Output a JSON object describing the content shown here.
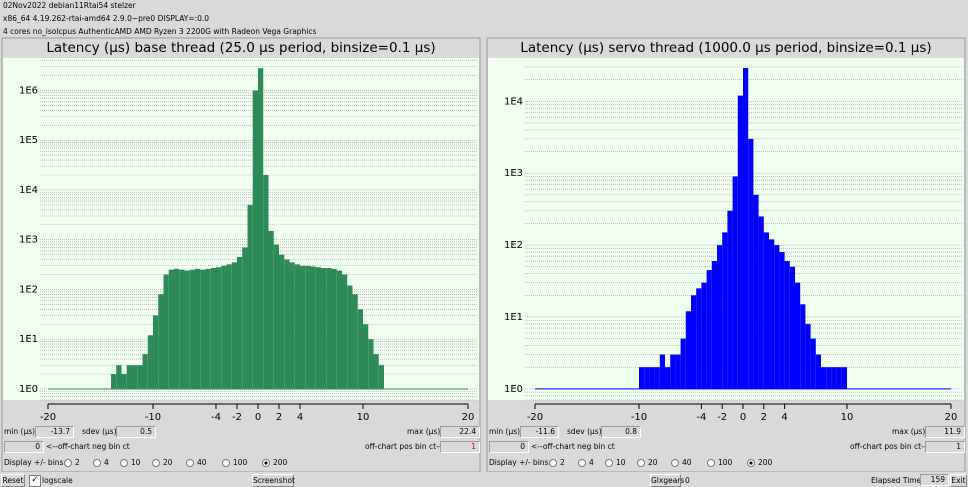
{
  "header": {
    "line1": "02Nov2022 debian11Rtai54 stelzer",
    "line2": "x86_64  4.19.262-rtai-amd64  2.9.0~pre0  DISPLAY=:0.0",
    "line3": "4 cores  no_isolcpus  AuthenticAMD  AMD Ryzen 3 2200G with Radeon Vega Graphics"
  },
  "chart_data": [
    {
      "type": "histogram",
      "title": "Latency (µs) base thread (25.0 µs period, binsize=0.1 µs)",
      "color": "#2e8b57",
      "log_y": true,
      "grid": true,
      "bins": [
        -14,
        -13.5,
        -13,
        -12.5,
        -12,
        -11.5,
        -11,
        -10.5,
        -10,
        -9.5,
        -9,
        -8.5,
        -8,
        -7.5,
        -7,
        -6.5,
        -6,
        -5.5,
        -5,
        -4.5,
        -4,
        -3.5,
        -3,
        -2.5,
        -2,
        -1.5,
        -1,
        -0.5,
        0,
        0.5,
        1,
        1.5,
        2,
        2.5,
        3,
        3.5,
        4,
        4.5,
        5,
        5.5,
        6,
        6.5,
        7,
        7.5,
        8,
        8.5,
        9,
        9.5,
        10,
        10.5,
        11,
        11.5,
        12
      ],
      "counts": [
        2,
        3,
        2,
        3,
        3,
        3,
        5,
        12,
        30,
        80,
        200,
        250,
        260,
        250,
        240,
        250,
        260,
        250,
        260,
        270,
        280,
        300,
        320,
        350,
        450,
        700,
        5000,
        1000000,
        2800000,
        20000,
        1500,
        800,
        500,
        400,
        350,
        320,
        300,
        300,
        290,
        280,
        270,
        270,
        260,
        240,
        200,
        120,
        80,
        40,
        20,
        10,
        5,
        3
      ],
      "xlim": [
        -20,
        20
      ],
      "xticks": [
        -20,
        -10,
        -4,
        -2,
        0,
        2,
        4,
        10,
        20
      ],
      "ylim": [
        0.6,
        4500000
      ],
      "yticks": [
        {
          "value": 1,
          "label": "1E0"
        },
        {
          "value": 10,
          "label": "1E1"
        },
        {
          "value": 100,
          "label": "1E2"
        },
        {
          "value": 1000,
          "label": "1E3"
        },
        {
          "value": 10000,
          "label": "1E4"
        },
        {
          "value": 100000,
          "label": "1E5"
        },
        {
          "value": 1000000,
          "label": "1E6"
        }
      ]
    },
    {
      "type": "histogram",
      "title": "Latency (µs) servo thread (1000.0 µs period, binsize=0.1 µs)",
      "color": "#0000ff",
      "log_y": true,
      "grid": true,
      "bins": [
        -10,
        -9.5,
        -9,
        -8.5,
        -8,
        -7.5,
        -7,
        -6.5,
        -6,
        -5.5,
        -5,
        -4.5,
        -4,
        -3.5,
        -3,
        -2.5,
        -2,
        -1.5,
        -1,
        -0.5,
        0,
        0.5,
        1,
        1.5,
        2,
        2.5,
        3,
        3.5,
        4,
        4.5,
        5,
        5.5,
        6,
        6.5,
        7,
        7.5,
        8,
        8.5,
        9,
        9.5,
        10
      ],
      "counts": [
        2,
        2,
        2,
        2,
        3,
        2,
        3,
        3,
        5,
        12,
        20,
        25,
        30,
        45,
        60,
        100,
        150,
        300,
        900,
        12000,
        29000,
        3000,
        500,
        250,
        150,
        120,
        100,
        80,
        60,
        50,
        30,
        15,
        8,
        5,
        3,
        2,
        2,
        2,
        2,
        2
      ],
      "xlim": [
        -20,
        20
      ],
      "xticks": [
        -20,
        -10,
        -4,
        -2,
        0,
        2,
        4,
        10,
        20
      ],
      "ylim": [
        0.7,
        40000
      ],
      "yticks": [
        {
          "value": 1,
          "label": "1E0"
        },
        {
          "value": 10,
          "label": "1E1"
        },
        {
          "value": 100,
          "label": "1E2"
        },
        {
          "value": 1000,
          "label": "1E3"
        },
        {
          "value": 10000,
          "label": "1E4"
        }
      ]
    }
  ],
  "panels": [
    {
      "min_label": "min (µs)",
      "min": -13.7,
      "sdev_label": "sdev (µs)",
      "sdev": 0.5,
      "max_label": "max (µs)",
      "max": 22.4,
      "neg_count": 0,
      "neg_label": "<--off-chart neg bin ct",
      "pos_label": "off-chart pos bin ct-->",
      "pos_count": 1,
      "pos_count_color": "#c00000",
      "bins_label": "Display +/- bins:",
      "bin_options": [
        2,
        4,
        10,
        20,
        40,
        100,
        200
      ],
      "selected": 200
    },
    {
      "min_label": "min (µs)",
      "min": -11.6,
      "sdev_label": "sdev (µs)",
      "sdev": 0.8,
      "max_label": "max (µs)",
      "max": 11.9,
      "neg_count": 0,
      "neg_label": "<--off-chart neg bin ct",
      "pos_label": "off-chart pos bin ct-->",
      "pos_count": 1,
      "pos_count_color": "#000000",
      "bins_label": "Display +/- bins:",
      "bin_options": [
        2,
        4,
        10,
        20,
        40,
        100,
        200
      ],
      "selected": 200
    }
  ],
  "footer": {
    "reset": "Reset",
    "logscale": "logscale",
    "screenshot": "Screenshot",
    "glxgears": "Glxgears",
    "glx_count": 0,
    "elapsed_label": "Elapsed Time:",
    "elapsed": 159,
    "exit": "Exit"
  }
}
